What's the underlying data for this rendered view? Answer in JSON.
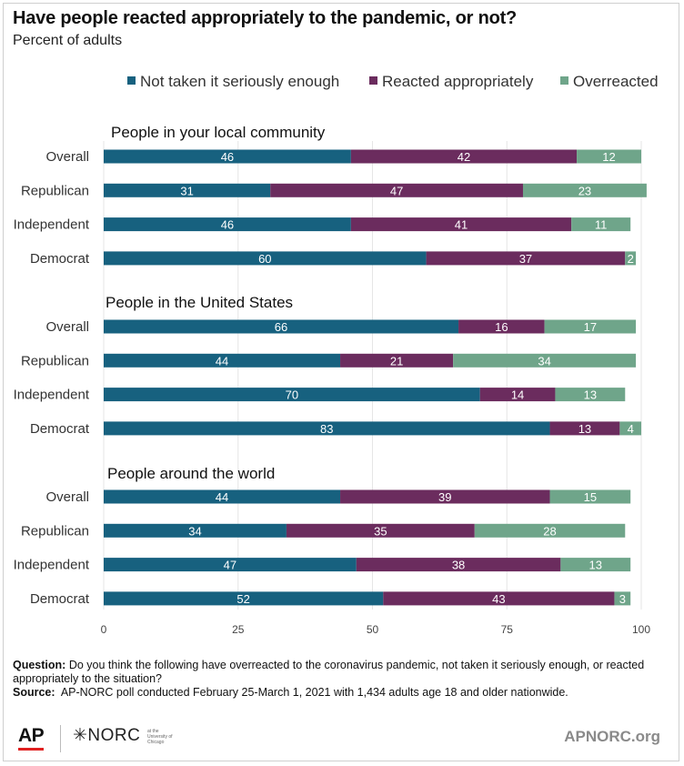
{
  "title": "Have people reacted appropriately to the pandemic, or not?",
  "subtitle": "Percent of adults",
  "colors": {
    "not_serious": "#17617f",
    "appropriate": "#6b2c5e",
    "overreacted": "#6fa58a"
  },
  "chart_data": {
    "type": "bar",
    "orientation": "horizontal",
    "stacked": true,
    "legend_position": "top-right",
    "series_names": [
      "Not taken it seriously enough",
      "Reacted appropriately",
      "Overreacted"
    ],
    "x_ticks": [
      "0",
      "25",
      "50",
      "75",
      "100"
    ],
    "xlim": [
      0,
      100
    ],
    "groups": [
      {
        "title": "People in your local community",
        "categories": [
          "Overall",
          "Republican",
          "Independent",
          "Democrat"
        ],
        "series": [
          {
            "name": "Not taken it seriously enough",
            "values": [
              46,
              31,
              46,
              60
            ]
          },
          {
            "name": "Reacted appropriately",
            "values": [
              42,
              47,
              41,
              37
            ]
          },
          {
            "name": "Overreacted",
            "values": [
              12,
              23,
              11,
              2
            ]
          }
        ]
      },
      {
        "title": "People in the United States",
        "categories": [
          "Overall",
          "Republican",
          "Independent",
          "Democrat"
        ],
        "series": [
          {
            "name": "Not taken it seriously enough",
            "values": [
              66,
              44,
              70,
              83
            ]
          },
          {
            "name": "Reacted appropriately",
            "values": [
              16,
              21,
              14,
              13
            ]
          },
          {
            "name": "Overreacted",
            "values": [
              17,
              34,
              13,
              4
            ]
          }
        ]
      },
      {
        "title": "People around the world",
        "categories": [
          "Overall",
          "Republican",
          "Independent",
          "Democrat"
        ],
        "series": [
          {
            "name": "Not taken it seriously enough",
            "values": [
              44,
              34,
              47,
              52
            ]
          },
          {
            "name": "Reacted appropriately",
            "values": [
              39,
              35,
              38,
              43
            ]
          },
          {
            "name": "Overreacted",
            "values": [
              15,
              28,
              13,
              3
            ]
          }
        ]
      }
    ]
  },
  "notes": {
    "question_label": "Question:",
    "question_text": "Do you think the following have overreacted to the coronavirus pandemic, not taken it seriously enough, or reacted appropriately to the situation?",
    "source_label": "Source:",
    "source_text": "AP-NORC poll conducted February 25-March 1, 2021 with 1,434 adults age 18 and older nationwide."
  },
  "footer": {
    "ap_logo": "AP",
    "norc_logo": "✳NORC",
    "norc_small": "at the University of Chicago",
    "site": "APNORC.org"
  }
}
